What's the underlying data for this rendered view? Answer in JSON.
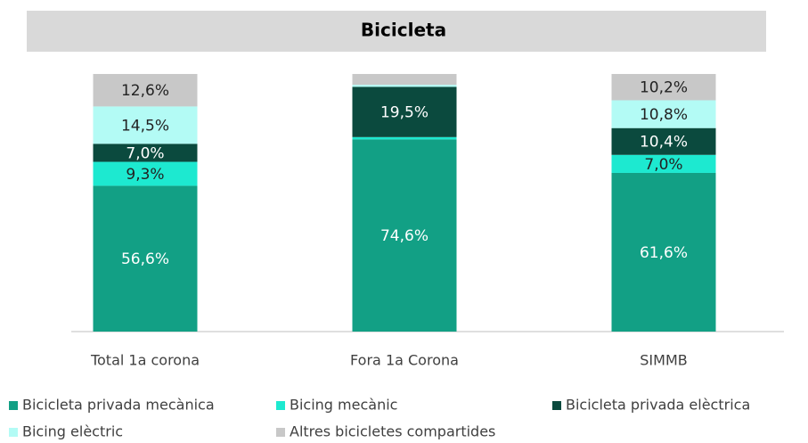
{
  "chart_data": {
    "type": "stacked_bar",
    "title": "Bicicleta",
    "categories": [
      "Total 1a corona",
      "Fora 1a Corona",
      "SIMMB"
    ],
    "ylim": [
      0,
      100
    ],
    "series": [
      {
        "name": "Bicicleta privada mecànica",
        "color": "#12a085",
        "values": [
          56.6,
          74.6,
          61.6
        ],
        "value_labels": [
          "56,6%",
          "74,6%",
          "61,6%"
        ]
      },
      {
        "name": "Bicing mecànic",
        "color": "#1de9d0",
        "values": [
          9.3,
          0.9,
          7.0
        ],
        "value_labels": [
          "9,3%",
          null,
          "7,0%"
        ]
      },
      {
        "name": "Bicicleta privada elèctrica",
        "color": "#0b4a3e",
        "values": [
          7.0,
          19.5,
          10.4
        ],
        "value_labels": [
          "7,0%",
          "19,5%",
          "10,4%"
        ]
      },
      {
        "name": "Bicing elèctric",
        "color": "#b3fbf5",
        "values": [
          14.5,
          0.8,
          10.8
        ],
        "value_labels": [
          "14,5%",
          null,
          "10,8%"
        ]
      },
      {
        "name": "Altres bicicletes compartides",
        "color": "#c8c8c8",
        "values": [
          12.6,
          4.2,
          10.2
        ],
        "value_labels": [
          "12,6%",
          null,
          "10,2%"
        ]
      }
    ]
  }
}
